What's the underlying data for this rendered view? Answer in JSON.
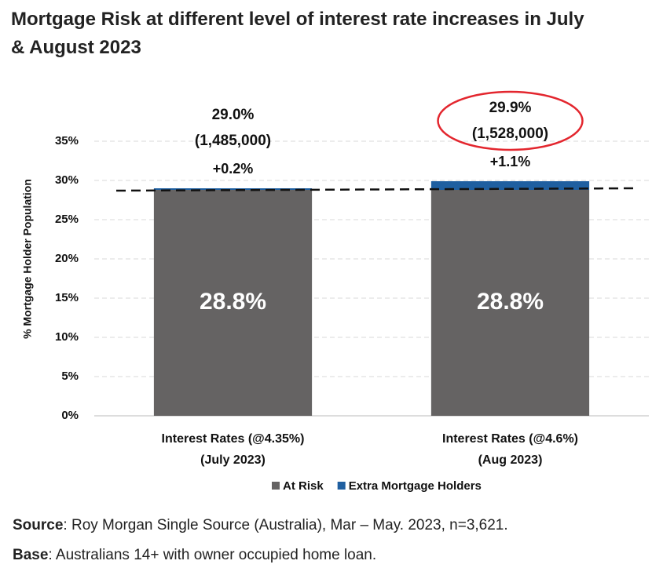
{
  "chart_data": {
    "type": "bar",
    "stacked": true,
    "title": [
      "Mortgage Risk at different level of interest rate increases in July",
      "& August 2023"
    ],
    "y_label": "% Mortgage Holder Population",
    "categories": [
      [
        "Interest Rates (@4.35%)",
        "(July 2023)"
      ],
      [
        "Interest Rates   (@4.6%)",
        "(Aug 2023)"
      ]
    ],
    "series": [
      {
        "name": "At Risk",
        "color": "#656363",
        "values": [
          28.8,
          28.8
        ],
        "value_labels": [
          "28.8%",
          "28.8%"
        ]
      },
      {
        "name": "Extra Mortgage Holders",
        "color": "#1f5fa0",
        "values": [
          0.2,
          1.1
        ],
        "value_labels": [
          "+0.2%",
          "+1.1%"
        ]
      }
    ],
    "annotations": [
      [
        "29.0%",
        "(1,485,000)"
      ],
      [
        "29.9%",
        "(1,528,000)"
      ]
    ],
    "highlight_index": 1,
    "ylim": [
      0,
      35
    ],
    "yticks": [
      {
        "value": 0,
        "label": "0%"
      },
      {
        "value": 5,
        "label": "5%"
      },
      {
        "value": 10,
        "label": "10%"
      },
      {
        "value": 15,
        "label": "15%"
      },
      {
        "value": 20,
        "label": "20%"
      },
      {
        "value": 25,
        "label": "25%"
      },
      {
        "value": 30,
        "label": "30%"
      },
      {
        "value": 35,
        "label": "35%"
      }
    ],
    "grid": true
  },
  "footnotes": [
    {
      "label": "Source",
      "text": ": Roy Morgan Single Source (Australia), Mar – May. 2023, n=3,621."
    },
    {
      "label": "Base",
      "text": ": Australians 14+ with owner occupied home loan."
    }
  ]
}
